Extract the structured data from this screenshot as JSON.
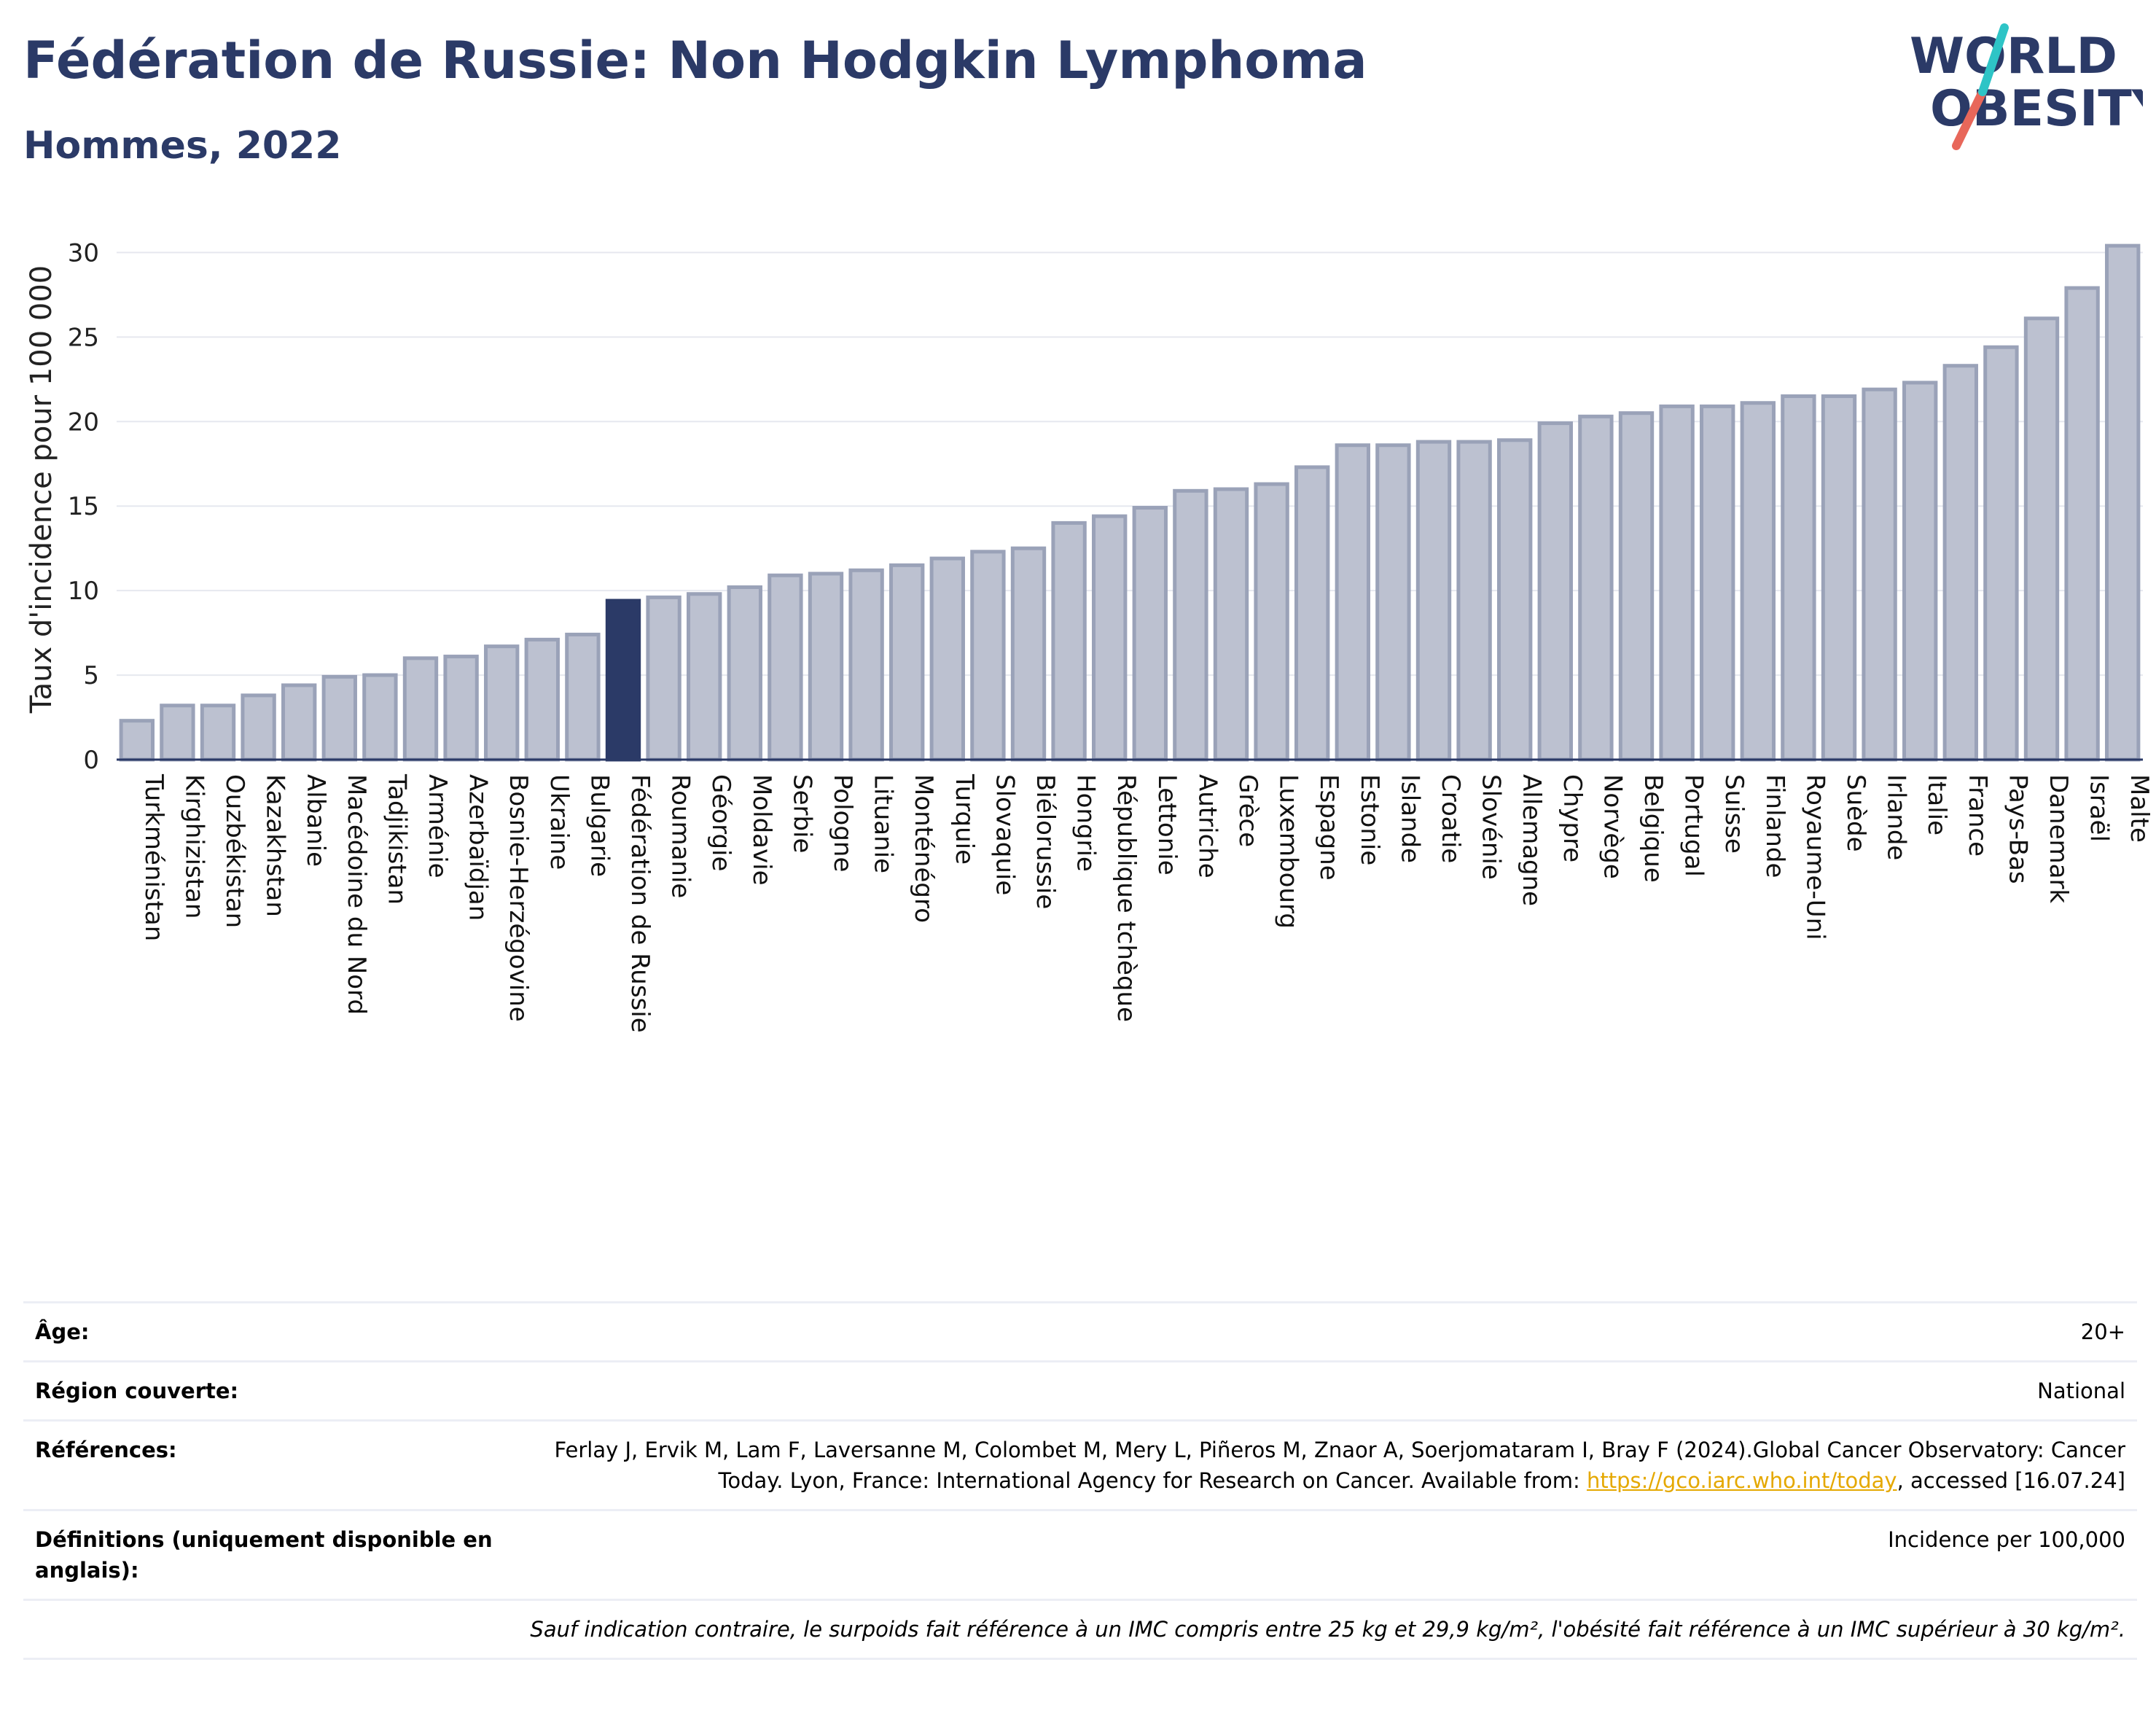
{
  "header": {
    "title": "Fédération de Russie: Non Hodgkin Lymphoma",
    "subtitle": "Hommes, 2022"
  },
  "logo": {
    "line1": "WORLD",
    "line2": "OBESITY",
    "accent_colors": [
      "#2ec4c6",
      "#e8675a"
    ]
  },
  "chart_data": {
    "type": "bar",
    "ylabel": "Taux d'incidence pour 100 000",
    "ylim": [
      0,
      32
    ],
    "yticks": [
      0,
      5,
      10,
      15,
      20,
      25,
      30
    ],
    "grid": true,
    "highlight": "Fédération de Russie",
    "colors": {
      "default_fill": "#bcc1d0",
      "default_stroke": "#9aa2b8",
      "highlight_fill": "#2b3a67",
      "axis": "#2b3a67",
      "grid": "#e6e8ef"
    },
    "categories": [
      "Turkménistan",
      "Kirghizistan",
      "Ouzbékistan",
      "Kazakhstan",
      "Albanie",
      "Macédoine du Nord",
      "Tadjikistan",
      "Arménie",
      "Azerbaïdjan",
      "Bosnie-Herzégovine",
      "Ukraine",
      "Bulgarie",
      "Fédération de Russie",
      "Roumanie",
      "Géorgie",
      "Moldavie",
      "Serbie",
      "Pologne",
      "Lituanie",
      "Monténégro",
      "Turquie",
      "Slovaquie",
      "Biélorussie",
      "Hongrie",
      "République tchèque",
      "Lettonie",
      "Autriche",
      "Grèce",
      "Luxembourg",
      "Espagne",
      "Estonie",
      "Islande",
      "Croatie",
      "Slovénie",
      "Allemagne",
      "Chypre",
      "Norvège",
      "Belgique",
      "Portugal",
      "Suisse",
      "Finlande",
      "Royaume-Uni",
      "Suède",
      "Irlande",
      "Italie",
      "France",
      "Pays-Bas",
      "Danemark",
      "Israël",
      "Malte"
    ],
    "values": [
      2.3,
      3.2,
      3.2,
      3.8,
      4.4,
      4.9,
      5.0,
      6.0,
      6.1,
      6.7,
      7.1,
      7.4,
      9.4,
      9.6,
      9.8,
      10.2,
      10.9,
      11.0,
      11.2,
      11.5,
      11.9,
      12.3,
      12.5,
      14.0,
      14.4,
      14.9,
      15.9,
      16.0,
      16.3,
      17.3,
      18.6,
      18.6,
      18.8,
      18.8,
      18.9,
      19.9,
      20.3,
      20.5,
      20.9,
      20.9,
      21.1,
      21.5,
      21.5,
      21.9,
      22.3,
      23.3,
      24.4,
      26.1,
      27.9,
      30.4
    ]
  },
  "info": {
    "age_label": "Âge:",
    "age_value": "20+",
    "region_label": "Région couverte:",
    "region_value": "National",
    "ref_label": "Références:",
    "ref_text_1": "Ferlay J, Ervik M, Lam F, Laversanne M, Colombet M, Mery L, Piñeros M, Znaor A, Soerjomataram I, Bray F (2024).Global Cancer Observatory: Cancer Today. Lyon, France: International Agency for Research on Cancer. Available from: ",
    "ref_link": "https://gco.iarc.who.int/today",
    "ref_text_2": ", accessed [16.07.24]",
    "def_label": "Définitions (uniquement disponible en anglais):",
    "def_value": "Incidence per 100,000",
    "note": "Sauf indication contraire, le surpoids fait référence à un IMC compris entre 25 kg et 29,9 kg/m², l'obésité fait référence à un IMC supérieur à 30 kg/m²."
  }
}
